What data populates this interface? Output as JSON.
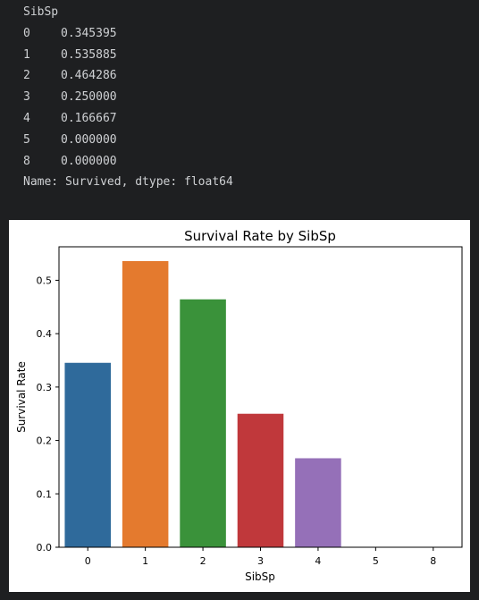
{
  "output": {
    "header": "SibSp",
    "rows": [
      {
        "index": "0",
        "value": "0.345395"
      },
      {
        "index": "1",
        "value": "0.535885"
      },
      {
        "index": "2",
        "value": "0.464286"
      },
      {
        "index": "3",
        "value": "0.250000"
      },
      {
        "index": "4",
        "value": "0.166667"
      },
      {
        "index": "5",
        "value": "0.000000"
      },
      {
        "index": "8",
        "value": "0.000000"
      }
    ],
    "footer": "Name: Survived, dtype: float64"
  },
  "chart_data": {
    "type": "bar",
    "title": "Survival Rate by SibSp",
    "xlabel": "SibSp",
    "ylabel": "Survival Rate",
    "categories": [
      "0",
      "1",
      "2",
      "3",
      "4",
      "5",
      "8"
    ],
    "values": [
      0.345395,
      0.535885,
      0.464286,
      0.25,
      0.166667,
      0.0,
      0.0
    ],
    "colors": [
      "#2f6a9b",
      "#e47a2e",
      "#3a923a",
      "#c0383b",
      "#9570b8",
      "#8c564b",
      "#e377c2"
    ],
    "ylim": [
      0,
      0.5627
    ],
    "yticks": [
      0.0,
      0.1,
      0.2,
      0.3,
      0.4,
      0.5
    ],
    "ytick_labels": [
      "0.0",
      "0.1",
      "0.2",
      "0.3",
      "0.4",
      "0.5"
    ],
    "grid": false,
    "legend": "none"
  }
}
